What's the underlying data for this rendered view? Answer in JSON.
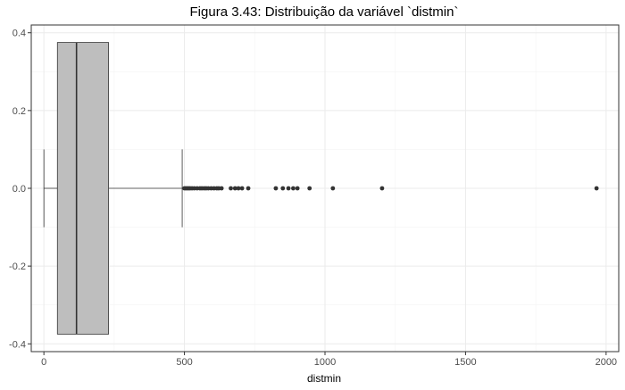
{
  "chart_data": {
    "type": "boxplot",
    "title": "Figura 3.43: Distribuição da variável `distmin`",
    "xlabel": "distmin",
    "ylabel": "",
    "xlim": [
      -45,
      2045
    ],
    "ylim": [
      -0.42,
      0.42
    ],
    "x_ticks": [
      0,
      500,
      1000,
      1500,
      2000
    ],
    "x_tick_labels": [
      "0",
      "500",
      "1000",
      "1500",
      "2000"
    ],
    "y_ticks": [
      -0.4,
      -0.2,
      0.0,
      0.2,
      0.4
    ],
    "y_tick_labels": [
      "-0.4",
      "-0.2",
      "0.0",
      "0.2",
      "0.4"
    ],
    "grid": true,
    "box": {
      "whisker_low": 0,
      "q1": 48,
      "median": 116,
      "q3": 230,
      "whisker_high": 492,
      "y_low": -0.375,
      "y_high": 0.375,
      "whisker_cap_half_height": 0.1
    },
    "outliers": [
      500,
      505,
      510,
      515,
      520,
      527,
      535,
      545,
      555,
      562,
      570,
      577,
      585,
      595,
      605,
      615,
      622,
      632,
      665,
      680,
      692,
      705,
      727,
      825,
      850,
      870,
      887,
      902,
      945,
      1028,
      1203,
      1966
    ],
    "colors": {
      "box_fill": "#bebebe",
      "box_stroke": "#333333",
      "outlier": "#333333",
      "grid_major": "#ebebeb",
      "grid_minor": "#f3f3f3",
      "panel_border": "#333333"
    }
  }
}
